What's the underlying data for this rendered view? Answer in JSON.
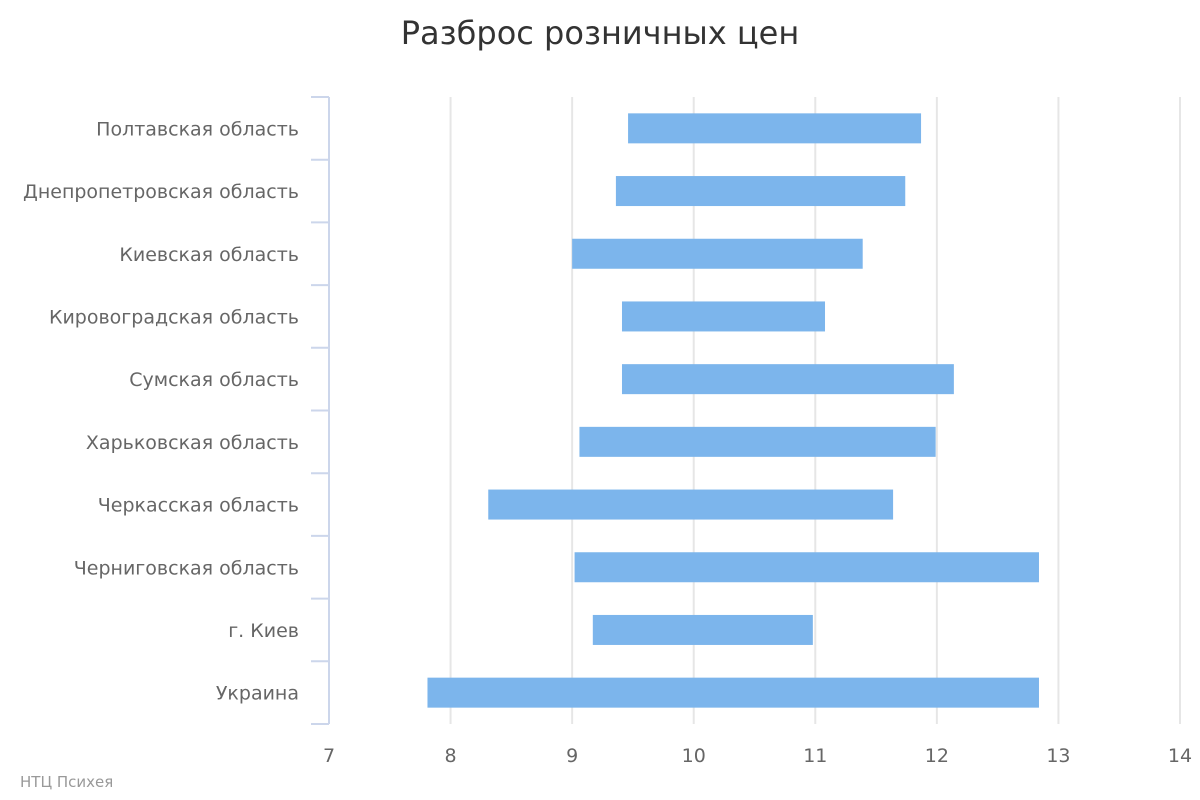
{
  "chart_data": {
    "type": "bar",
    "subtype": "horizontal-range",
    "title": "Разброс розничных цен",
    "credit": "НТЦ Психея",
    "xlabel": "",
    "ylabel": "",
    "xlim": [
      7,
      14
    ],
    "xticks": [
      "7",
      "8",
      "9",
      "10",
      "11",
      "12",
      "13",
      "14"
    ],
    "grid": true,
    "legend": "none",
    "color": "#7cb5ec",
    "categories": [
      "Полтавская область",
      "Днепропетровская область",
      "Киевская область",
      "Кировоградская область",
      "Сумская область",
      "Харьковская область",
      "Черкасская область",
      "Черниговская область",
      "г. Киев",
      "Украина"
    ],
    "series": [
      {
        "name": "Разброс",
        "low": [
          9.46,
          9.36,
          9.0,
          9.41,
          9.41,
          9.06,
          8.31,
          9.02,
          9.17,
          7.81
        ],
        "high": [
          11.87,
          11.74,
          11.39,
          11.08,
          12.14,
          11.99,
          11.64,
          12.84,
          10.98,
          12.84
        ]
      }
    ]
  }
}
